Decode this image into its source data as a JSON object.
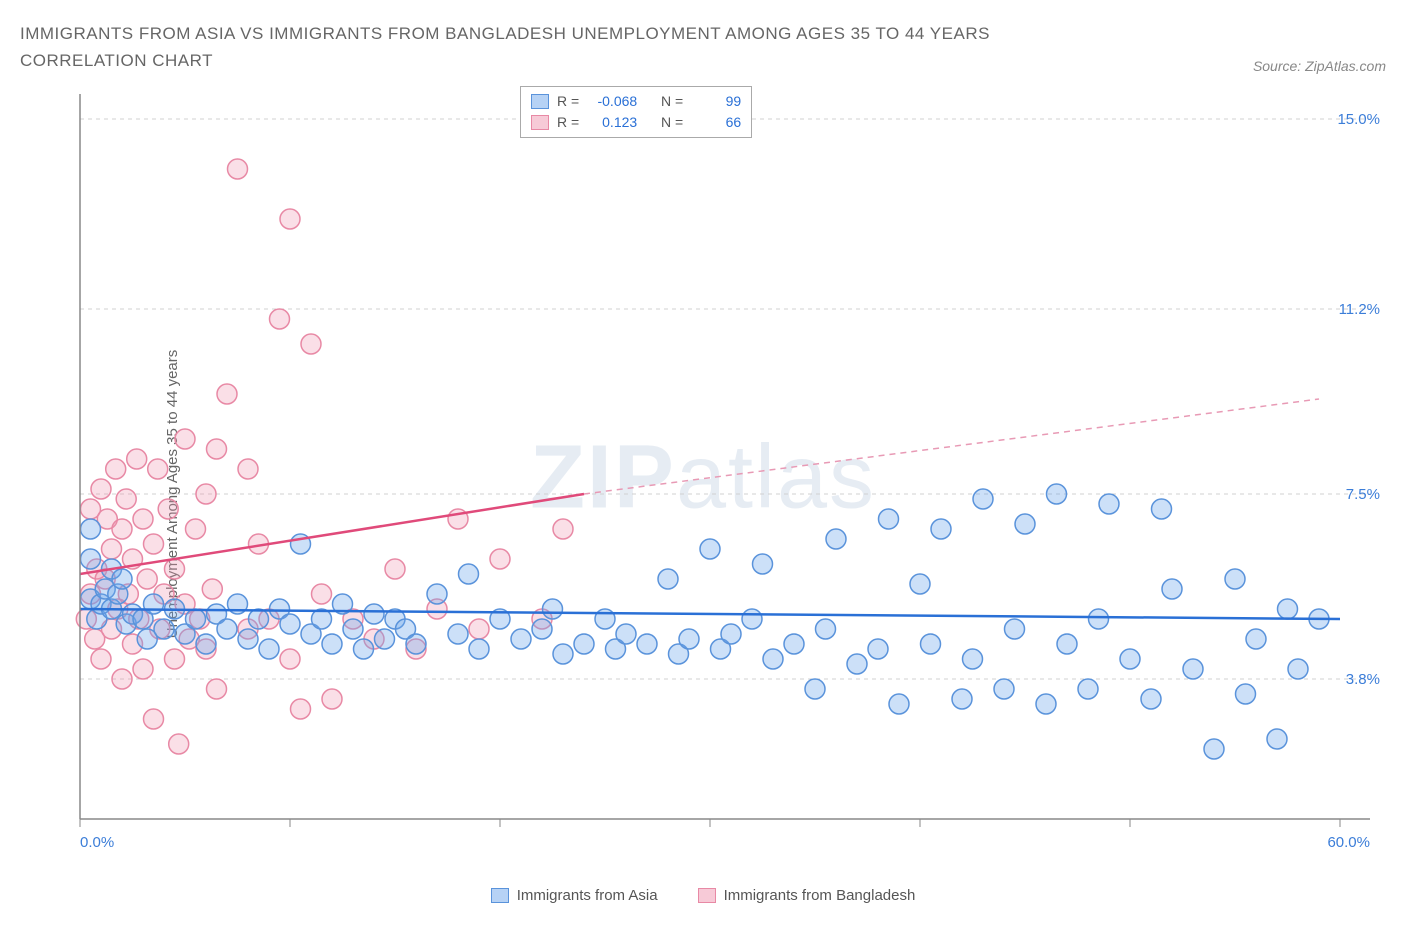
{
  "title": "IMMIGRANTS FROM ASIA VS IMMIGRANTS FROM BANGLADESH UNEMPLOYMENT AMONG AGES 35 TO 44 YEARS CORRELATION CHART",
  "source": "Source: ZipAtlas.com",
  "y_axis_label": "Unemployment Among Ages 35 to 44 years",
  "watermark_bold": "ZIP",
  "watermark_thin": "atlas",
  "chart": {
    "type": "scatter",
    "x_min": 0.0,
    "x_max": 60.0,
    "y_min": 1.0,
    "y_max": 15.5,
    "x_ticks": [
      0,
      10,
      20,
      30,
      40,
      50,
      60
    ],
    "x_tick_labels_shown": {
      "0": "0.0%",
      "60": "60.0%"
    },
    "y_ticks": [
      3.8,
      7.5,
      11.2,
      15.0
    ],
    "y_tick_labels": [
      "3.8%",
      "7.5%",
      "11.2%",
      "15.0%"
    ],
    "background_color": "#ffffff",
    "grid_color": "#d0d0d0",
    "axis_color": "#888888",
    "marker_radius": 10,
    "series_a": {
      "name": "Immigrants from Asia",
      "fill": "rgba(110,165,235,0.35)",
      "stroke": "#5a93db",
      "trend_color": "#2a70d6",
      "R": "-0.068",
      "N": "99",
      "trend": {
        "x1": 0,
        "y1": 5.2,
        "x2": 60,
        "y2": 5.0
      },
      "points": [
        [
          0.5,
          6.2
        ],
        [
          0.5,
          6.8
        ],
        [
          0.5,
          5.4
        ],
        [
          0.8,
          5.0
        ],
        [
          1.0,
          5.3
        ],
        [
          1.2,
          5.6
        ],
        [
          1.5,
          6.0
        ],
        [
          1.5,
          5.2
        ],
        [
          1.8,
          5.5
        ],
        [
          2.0,
          5.8
        ],
        [
          2.2,
          4.9
        ],
        [
          2.5,
          5.1
        ],
        [
          3.0,
          5.0
        ],
        [
          3.2,
          4.6
        ],
        [
          3.5,
          5.3
        ],
        [
          4.0,
          4.8
        ],
        [
          4.5,
          5.2
        ],
        [
          5.0,
          4.7
        ],
        [
          5.5,
          5.0
        ],
        [
          6.0,
          4.5
        ],
        [
          6.5,
          5.1
        ],
        [
          7.0,
          4.8
        ],
        [
          7.5,
          5.3
        ],
        [
          8.0,
          4.6
        ],
        [
          8.5,
          5.0
        ],
        [
          9.0,
          4.4
        ],
        [
          9.5,
          5.2
        ],
        [
          10.0,
          4.9
        ],
        [
          10.5,
          6.5
        ],
        [
          11.0,
          4.7
        ],
        [
          11.5,
          5.0
        ],
        [
          12.0,
          4.5
        ],
        [
          12.5,
          5.3
        ],
        [
          13.0,
          4.8
        ],
        [
          13.5,
          4.4
        ],
        [
          14.0,
          5.1
        ],
        [
          14.5,
          4.6
        ],
        [
          15.0,
          5.0
        ],
        [
          15.5,
          4.8
        ],
        [
          16.0,
          4.5
        ],
        [
          17.0,
          5.5
        ],
        [
          18.0,
          4.7
        ],
        [
          18.5,
          5.9
        ],
        [
          19.0,
          4.4
        ],
        [
          20.0,
          5.0
        ],
        [
          21.0,
          4.6
        ],
        [
          22.0,
          4.8
        ],
        [
          22.5,
          5.2
        ],
        [
          23.0,
          4.3
        ],
        [
          24.0,
          4.5
        ],
        [
          25.0,
          5.0
        ],
        [
          25.5,
          4.4
        ],
        [
          26.0,
          4.7
        ],
        [
          27.0,
          4.5
        ],
        [
          28.0,
          5.8
        ],
        [
          28.5,
          4.3
        ],
        [
          29.0,
          4.6
        ],
        [
          30.0,
          6.4
        ],
        [
          30.5,
          4.4
        ],
        [
          31.0,
          4.7
        ],
        [
          32.0,
          5.0
        ],
        [
          32.5,
          6.1
        ],
        [
          33.0,
          4.2
        ],
        [
          34.0,
          4.5
        ],
        [
          35.0,
          3.6
        ],
        [
          35.5,
          4.8
        ],
        [
          36.0,
          6.6
        ],
        [
          37.0,
          4.1
        ],
        [
          38.0,
          4.4
        ],
        [
          38.5,
          7.0
        ],
        [
          39.0,
          3.3
        ],
        [
          40.0,
          5.7
        ],
        [
          40.5,
          4.5
        ],
        [
          41.0,
          6.8
        ],
        [
          42.0,
          3.4
        ],
        [
          42.5,
          4.2
        ],
        [
          43.0,
          7.4
        ],
        [
          44.0,
          3.6
        ],
        [
          44.5,
          4.8
        ],
        [
          45.0,
          6.9
        ],
        [
          46.0,
          3.3
        ],
        [
          46.5,
          7.5
        ],
        [
          47.0,
          4.5
        ],
        [
          48.0,
          3.6
        ],
        [
          48.5,
          5.0
        ],
        [
          49.0,
          7.3
        ],
        [
          50.0,
          4.2
        ],
        [
          51.0,
          3.4
        ],
        [
          51.5,
          7.2
        ],
        [
          52.0,
          5.6
        ],
        [
          53.0,
          4.0
        ],
        [
          54.0,
          2.4
        ],
        [
          55.0,
          5.8
        ],
        [
          55.5,
          3.5
        ],
        [
          56.0,
          4.6
        ],
        [
          57.0,
          2.6
        ],
        [
          57.5,
          5.2
        ],
        [
          58.0,
          4.0
        ],
        [
          59.0,
          5.0
        ]
      ]
    },
    "series_b": {
      "name": "Immigrants from Bangladesh",
      "fill": "rgba(240,150,175,0.30)",
      "stroke": "#e889a5",
      "trend_color": "#e04a7a",
      "R": "0.123",
      "N": "66",
      "trend_solid": {
        "x1": 0,
        "y1": 5.9,
        "x2": 24,
        "y2": 7.5
      },
      "trend_dash": {
        "x1": 24,
        "y1": 7.5,
        "x2": 59,
        "y2": 9.4
      },
      "points": [
        [
          0.3,
          5.0
        ],
        [
          0.5,
          5.5
        ],
        [
          0.5,
          7.2
        ],
        [
          0.7,
          4.6
        ],
        [
          0.8,
          6.0
        ],
        [
          1.0,
          7.6
        ],
        [
          1.0,
          4.2
        ],
        [
          1.2,
          5.8
        ],
        [
          1.3,
          7.0
        ],
        [
          1.5,
          6.4
        ],
        [
          1.5,
          4.8
        ],
        [
          1.7,
          8.0
        ],
        [
          1.8,
          5.2
        ],
        [
          2.0,
          6.8
        ],
        [
          2.0,
          3.8
        ],
        [
          2.2,
          7.4
        ],
        [
          2.3,
          5.5
        ],
        [
          2.5,
          4.5
        ],
        [
          2.5,
          6.2
        ],
        [
          2.7,
          8.2
        ],
        [
          2.8,
          5.0
        ],
        [
          3.0,
          7.0
        ],
        [
          3.0,
          4.0
        ],
        [
          3.2,
          5.8
        ],
        [
          3.5,
          6.5
        ],
        [
          3.5,
          3.0
        ],
        [
          3.7,
          8.0
        ],
        [
          3.8,
          4.8
        ],
        [
          4.0,
          5.5
        ],
        [
          4.2,
          7.2
        ],
        [
          4.5,
          4.2
        ],
        [
          4.5,
          6.0
        ],
        [
          4.7,
          2.5
        ],
        [
          5.0,
          5.3
        ],
        [
          5.0,
          8.6
        ],
        [
          5.2,
          4.6
        ],
        [
          5.5,
          6.8
        ],
        [
          5.7,
          5.0
        ],
        [
          6.0,
          4.4
        ],
        [
          6.0,
          7.5
        ],
        [
          6.3,
          5.6
        ],
        [
          6.5,
          3.6
        ],
        [
          6.5,
          8.4
        ],
        [
          7.0,
          9.5
        ],
        [
          7.5,
          14.0
        ],
        [
          8.0,
          8.0
        ],
        [
          8.0,
          4.8
        ],
        [
          8.5,
          6.5
        ],
        [
          9.0,
          5.0
        ],
        [
          9.5,
          11.0
        ],
        [
          10.0,
          13.0
        ],
        [
          10.0,
          4.2
        ],
        [
          10.5,
          3.2
        ],
        [
          11.0,
          10.5
        ],
        [
          11.5,
          5.5
        ],
        [
          12.0,
          3.4
        ],
        [
          13.0,
          5.0
        ],
        [
          14.0,
          4.6
        ],
        [
          15.0,
          6.0
        ],
        [
          16.0,
          4.4
        ],
        [
          17.0,
          5.2
        ],
        [
          18.0,
          7.0
        ],
        [
          19.0,
          4.8
        ],
        [
          20.0,
          6.2
        ],
        [
          22.0,
          5.0
        ],
        [
          23.0,
          6.8
        ]
      ]
    }
  },
  "corr_legend": {
    "r_label": "R =",
    "n_label": "N ="
  },
  "bottom_legend": {
    "a": "Immigrants from Asia",
    "b": "Immigrants from Bangladesh"
  }
}
